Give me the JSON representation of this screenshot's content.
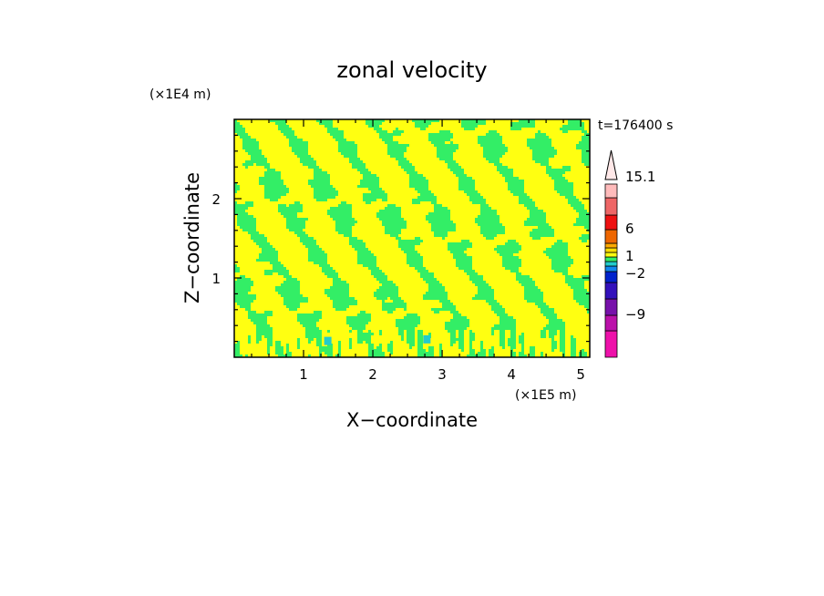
{
  "chart_data": {
    "type": "heatmap",
    "title": "zonal velocity",
    "xlabel": "X−coordinate",
    "ylabel": "Z−coordinate",
    "x_unit": "(×1E5 m)",
    "y_unit": "(×1E4 m)",
    "time_label": "t=176400 s",
    "xlim": [
      0,
      5.13
    ],
    "ylim": [
      0,
      3.0
    ],
    "x_ticks": [
      {
        "value": 1,
        "label": "1"
      },
      {
        "value": 2,
        "label": "2"
      },
      {
        "value": 3,
        "label": "3"
      },
      {
        "value": 4,
        "label": "4"
      },
      {
        "value": 5,
        "label": "5"
      }
    ],
    "y_ticks": [
      {
        "value": 1,
        "label": "1"
      },
      {
        "value": 2,
        "label": "2"
      }
    ],
    "field": {
      "dominant_levels": [
        {
          "range": [
            -1,
            0
          ],
          "color": "#33ee66"
        },
        {
          "range": [
            0,
            1
          ],
          "color": "#ffff11"
        }
      ],
      "minor_levels": [
        {
          "range": [
            -2,
            -1
          ],
          "color": "#22cccc"
        }
      ]
    },
    "colorbar": {
      "levels": [
        {
          "color": "#ee11aa"
        },
        {
          "color": "#bb11aa"
        },
        {
          "color": "#7711aa"
        },
        {
          "color": "#3311bb"
        },
        {
          "color": "#0022cc"
        },
        {
          "color": "#1188ee"
        },
        {
          "color": "#22cccc"
        },
        {
          "color": "#33ee66"
        },
        {
          "color": "#ffff11"
        },
        {
          "color": "#ffdd00"
        },
        {
          "color": "#ffaa00"
        },
        {
          "color": "#ee6600"
        },
        {
          "color": "#ee1111"
        },
        {
          "color": "#ee6666"
        },
        {
          "color": "#ffbbbb"
        },
        {
          "color": "#ffe8e8"
        }
      ],
      "labels": [
        "15.1",
        "6",
        "1",
        "−2",
        "−9"
      ]
    }
  }
}
